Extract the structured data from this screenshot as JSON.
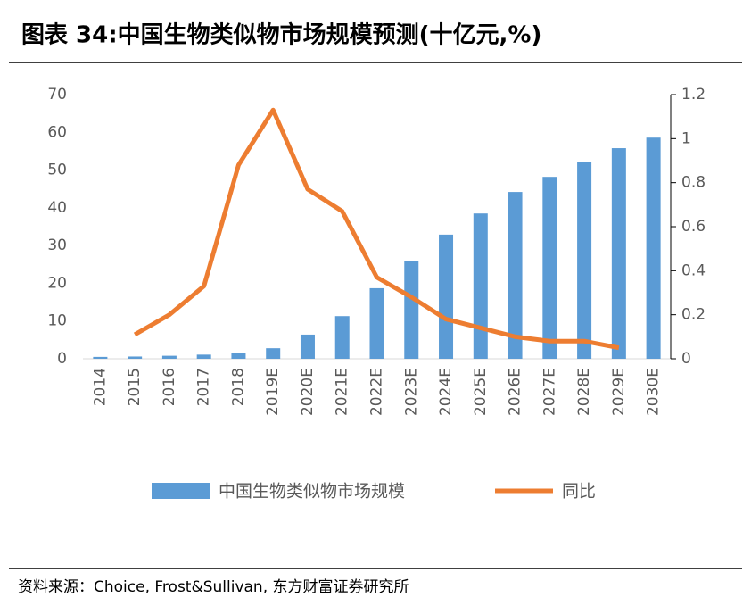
{
  "chart_data": {
    "type": "combo",
    "title": "图表 34:中国生物类似物市场规模预测(十亿元,%)",
    "source": "资料来源：Choice, Frost&Sullivan, 东方财富证券研究所",
    "categories": [
      "2014",
      "2015",
      "2016",
      "2017",
      "2018",
      "2019E",
      "2020E",
      "2021E",
      "2022E",
      "2023E",
      "2024E",
      "2025E",
      "2026E",
      "2027E",
      "2028E",
      "2029E",
      "2030E"
    ],
    "series": [
      {
        "name": "中国生物类似物市场规模",
        "type": "bar",
        "color": "#5b9bd5",
        "values": [
          0.5,
          0.6,
          0.8,
          1.1,
          1.5,
          2.8,
          6.4,
          11.3,
          18.7,
          25.8,
          32.9,
          38.5,
          44.2,
          48.2,
          52.2,
          55.8,
          58.6
        ]
      },
      {
        "name": "同比",
        "type": "line",
        "axis": "y2",
        "color": "#ed7d31",
        "values": [
          null,
          0.11,
          0.2,
          0.33,
          0.88,
          1.13,
          0.77,
          0.67,
          0.37,
          0.28,
          0.18,
          0.14,
          0.1,
          0.08,
          0.08,
          0.05,
          null
        ]
      }
    ],
    "ylim": [
      0,
      70
    ],
    "yticks": [
      0,
      10,
      20,
      30,
      40,
      50,
      60,
      70
    ],
    "y2lim": [
      0,
      1.2
    ],
    "y2ticks": [
      0,
      0.2,
      0.4,
      0.6,
      0.8,
      1,
      1.2
    ],
    "grid": false
  }
}
